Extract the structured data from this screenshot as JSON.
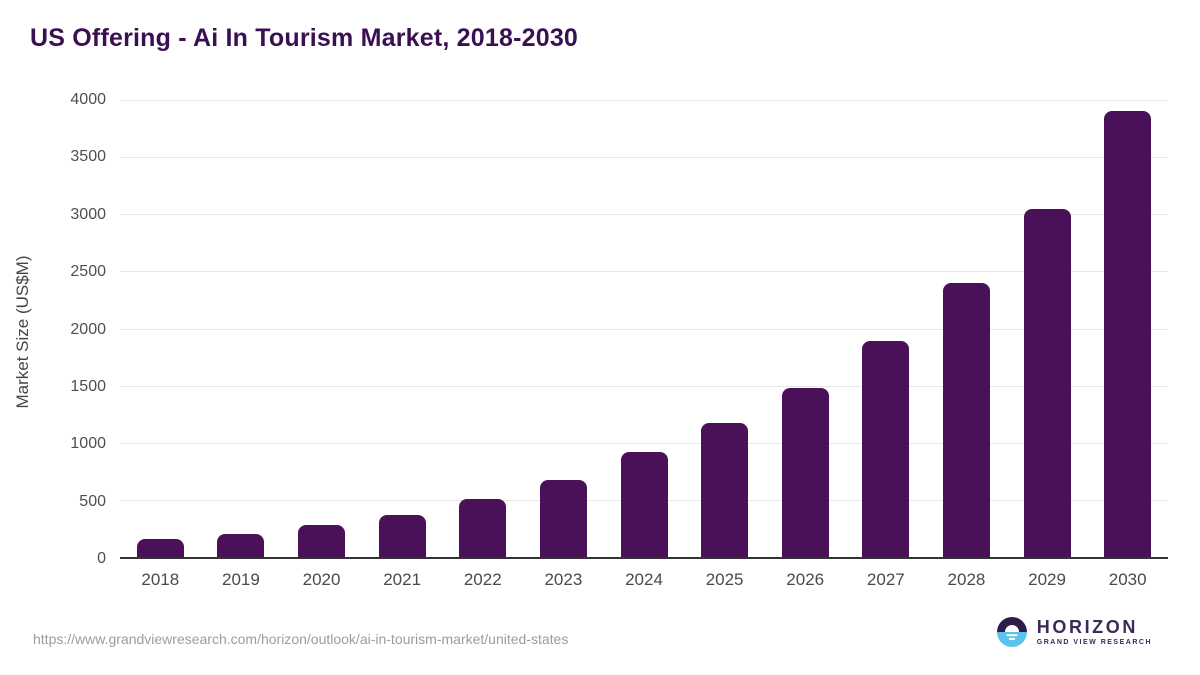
{
  "page": {
    "title": "US Offering - Ai In Tourism Market, 2018-2030"
  },
  "chart_data": {
    "type": "bar",
    "title": "US Offering - Ai In Tourism Market, 2018-2030",
    "categories": [
      "2018",
      "2019",
      "2020",
      "2021",
      "2022",
      "2023",
      "2024",
      "2025",
      "2026",
      "2027",
      "2028",
      "2029",
      "2030"
    ],
    "values": [
      155,
      205,
      280,
      370,
      505,
      675,
      920,
      1175,
      1480,
      1890,
      2400,
      3050,
      3900
    ],
    "xlabel": "",
    "ylabel": "Market Size (US$M)",
    "ylim": [
      0,
      4000
    ],
    "ytick_interval": 500,
    "grid": true,
    "legend": "none",
    "bar_color": "#4a1158"
  },
  "footer": {
    "source_url": "https://www.grandviewresearch.com/horizon/outlook/ai-in-tourism-market/united-states",
    "logo": {
      "brand": "HORIZON",
      "tagline": "GRAND VIEW RESEARCH"
    }
  },
  "colors": {
    "bar": "#4a1158",
    "title_text": "#3a1053",
    "axis_text": "#4f4f4f",
    "gridline": "#e7e7e7",
    "baseline": "#333333",
    "url_text": "#9c9c9c",
    "logo_dark": "#2d1b49",
    "logo_blue": "#5ac3ee",
    "logo_text": "#3c2b57"
  }
}
